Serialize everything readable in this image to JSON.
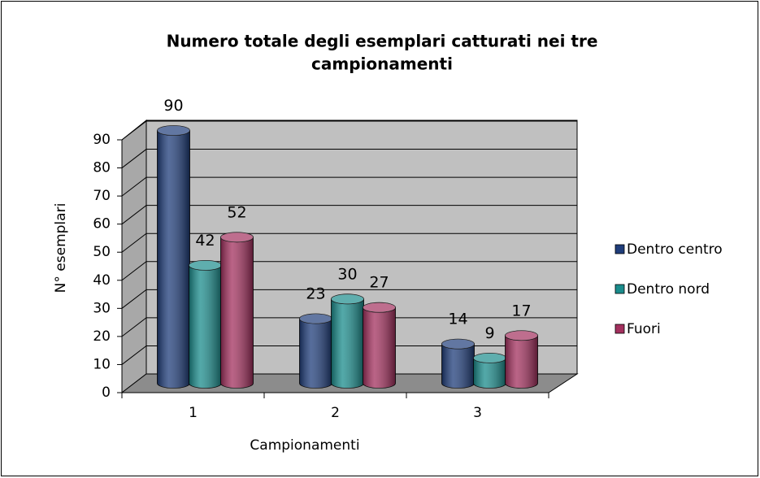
{
  "chart_data": {
    "type": "bar3d",
    "title": "Numero totale degli esemplari catturati nei tre",
    "title_line2": "campionamenti",
    "xlabel": "Campionamenti",
    "ylabel": "N° esemplari",
    "categories": [
      "1",
      "2",
      "3"
    ],
    "series": [
      {
        "name": "Dentro centro",
        "color": "#1f3d7a",
        "values": [
          90,
          23,
          14
        ]
      },
      {
        "name": "Dentro nord",
        "color": "#1a8c8c",
        "values": [
          42,
          30,
          9
        ]
      },
      {
        "name": "Fuori",
        "color": "#a3305e",
        "values": [
          52,
          27,
          17
        ]
      }
    ],
    "ylim": [
      0,
      90
    ],
    "yticks": [
      0,
      10,
      20,
      30,
      40,
      50,
      60,
      70,
      80,
      90
    ],
    "grid": true,
    "legend": "right"
  }
}
